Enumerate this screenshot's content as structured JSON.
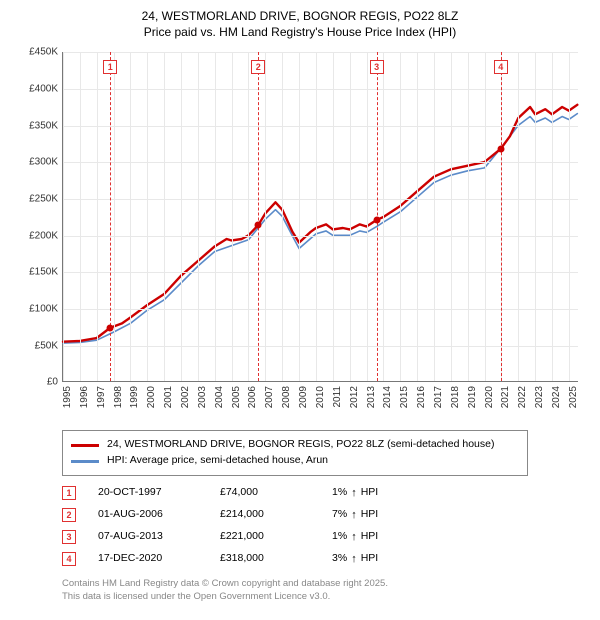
{
  "title": {
    "line1": "24, WESTMORLAND DRIVE, BOGNOR REGIS, PO22 8LZ",
    "line2": "Price paid vs. HM Land Registry's House Price Index (HPI)"
  },
  "chart": {
    "type": "line",
    "background_color": "#ffffff",
    "grid_color": "#e8e8e8",
    "axis_color": "#777777",
    "x_range": [
      1995,
      2025.6
    ],
    "y_range": [
      0,
      450000
    ],
    "y_ticks": [
      0,
      50000,
      100000,
      150000,
      200000,
      250000,
      300000,
      350000,
      400000,
      450000
    ],
    "y_tick_labels": [
      "£0",
      "£50K",
      "£100K",
      "£150K",
      "£200K",
      "£250K",
      "£300K",
      "£350K",
      "£400K",
      "£450K"
    ],
    "x_ticks": [
      1995,
      1996,
      1997,
      1998,
      1999,
      2000,
      2001,
      2002,
      2003,
      2004,
      2005,
      2006,
      2007,
      2008,
      2009,
      2010,
      2011,
      2012,
      2013,
      2014,
      2015,
      2016,
      2017,
      2018,
      2019,
      2020,
      2021,
      2022,
      2023,
      2024,
      2025
    ],
    "series": [
      {
        "name": "red",
        "color": "#cc0000",
        "width": 2.4,
        "points": [
          [
            1995,
            55000
          ],
          [
            1996,
            56000
          ],
          [
            1997,
            60000
          ],
          [
            1997.8,
            74000
          ],
          [
            1998.5,
            80000
          ],
          [
            1999,
            88000
          ],
          [
            2000,
            105000
          ],
          [
            2001,
            120000
          ],
          [
            2002,
            145000
          ],
          [
            2003,
            165000
          ],
          [
            2004,
            185000
          ],
          [
            2004.7,
            195000
          ],
          [
            2005,
            193000
          ],
          [
            2005.6,
            195000
          ],
          [
            2006,
            200000
          ],
          [
            2006.58,
            214000
          ],
          [
            2007,
            230000
          ],
          [
            2007.6,
            245000
          ],
          [
            2008,
            235000
          ],
          [
            2008.6,
            205000
          ],
          [
            2009,
            190000
          ],
          [
            2009.7,
            205000
          ],
          [
            2010,
            210000
          ],
          [
            2010.6,
            215000
          ],
          [
            2011,
            208000
          ],
          [
            2011.6,
            210000
          ],
          [
            2012,
            208000
          ],
          [
            2012.6,
            215000
          ],
          [
            2013,
            212000
          ],
          [
            2013.6,
            221000
          ],
          [
            2014,
            225000
          ],
          [
            2015,
            240000
          ],
          [
            2016,
            260000
          ],
          [
            2017,
            280000
          ],
          [
            2018,
            290000
          ],
          [
            2019,
            295000
          ],
          [
            2020,
            300000
          ],
          [
            2020.96,
            318000
          ],
          [
            2021.5,
            335000
          ],
          [
            2022,
            360000
          ],
          [
            2022.7,
            375000
          ],
          [
            2023,
            365000
          ],
          [
            2023.6,
            372000
          ],
          [
            2024,
            365000
          ],
          [
            2024.6,
            375000
          ],
          [
            2025,
            370000
          ],
          [
            2025.5,
            378000
          ]
        ]
      },
      {
        "name": "blue",
        "color": "#5b8bc9",
        "width": 1.6,
        "points": [
          [
            1995,
            53000
          ],
          [
            1996,
            54000
          ],
          [
            1997,
            57000
          ],
          [
            1998,
            68000
          ],
          [
            1999,
            80000
          ],
          [
            2000,
            98000
          ],
          [
            2001,
            112000
          ],
          [
            2002,
            135000
          ],
          [
            2003,
            158000
          ],
          [
            2004,
            178000
          ],
          [
            2005,
            186000
          ],
          [
            2006,
            194000
          ],
          [
            2007,
            222000
          ],
          [
            2007.6,
            235000
          ],
          [
            2008,
            226000
          ],
          [
            2008.7,
            195000
          ],
          [
            2009,
            182000
          ],
          [
            2009.7,
            196000
          ],
          [
            2010,
            202000
          ],
          [
            2010.6,
            206000
          ],
          [
            2011,
            200000
          ],
          [
            2012,
            200000
          ],
          [
            2012.6,
            206000
          ],
          [
            2013,
            204000
          ],
          [
            2013.6,
            212000
          ],
          [
            2014,
            218000
          ],
          [
            2015,
            232000
          ],
          [
            2016,
            252000
          ],
          [
            2017,
            272000
          ],
          [
            2018,
            282000
          ],
          [
            2019,
            288000
          ],
          [
            2020,
            292000
          ],
          [
            2021,
            320000
          ],
          [
            2022,
            350000
          ],
          [
            2022.7,
            362000
          ],
          [
            2023,
            354000
          ],
          [
            2023.6,
            360000
          ],
          [
            2024,
            354000
          ],
          [
            2024.6,
            362000
          ],
          [
            2025,
            358000
          ],
          [
            2025.5,
            366000
          ]
        ]
      }
    ],
    "marker_line_color": "#e03030",
    "sale_markers": [
      {
        "n": "1",
        "x": 1997.8,
        "y": 74000
      },
      {
        "n": "2",
        "x": 2006.58,
        "y": 214000
      },
      {
        "n": "3",
        "x": 2013.6,
        "y": 221000
      },
      {
        "n": "4",
        "x": 2020.96,
        "y": 318000
      }
    ]
  },
  "legend": {
    "items": [
      {
        "color": "#cc0000",
        "label": "24, WESTMORLAND DRIVE, BOGNOR REGIS, PO22 8LZ (semi-detached house)"
      },
      {
        "color": "#5b8bc9",
        "label": "HPI: Average price, semi-detached house, Arun"
      }
    ]
  },
  "sales": [
    {
      "n": "1",
      "date": "20-OCT-1997",
      "price": "£74,000",
      "change": "1%",
      "dir": "↑",
      "vs": "HPI"
    },
    {
      "n": "2",
      "date": "01-AUG-2006",
      "price": "£214,000",
      "change": "7%",
      "dir": "↑",
      "vs": "HPI"
    },
    {
      "n": "3",
      "date": "07-AUG-2013",
      "price": "£221,000",
      "change": "1%",
      "dir": "↑",
      "vs": "HPI"
    },
    {
      "n": "4",
      "date": "17-DEC-2020",
      "price": "£318,000",
      "change": "3%",
      "dir": "↑",
      "vs": "HPI"
    }
  ],
  "footer": {
    "line1": "Contains HM Land Registry data © Crown copyright and database right 2025.",
    "line2": "This data is licensed under the Open Government Licence v3.0."
  }
}
